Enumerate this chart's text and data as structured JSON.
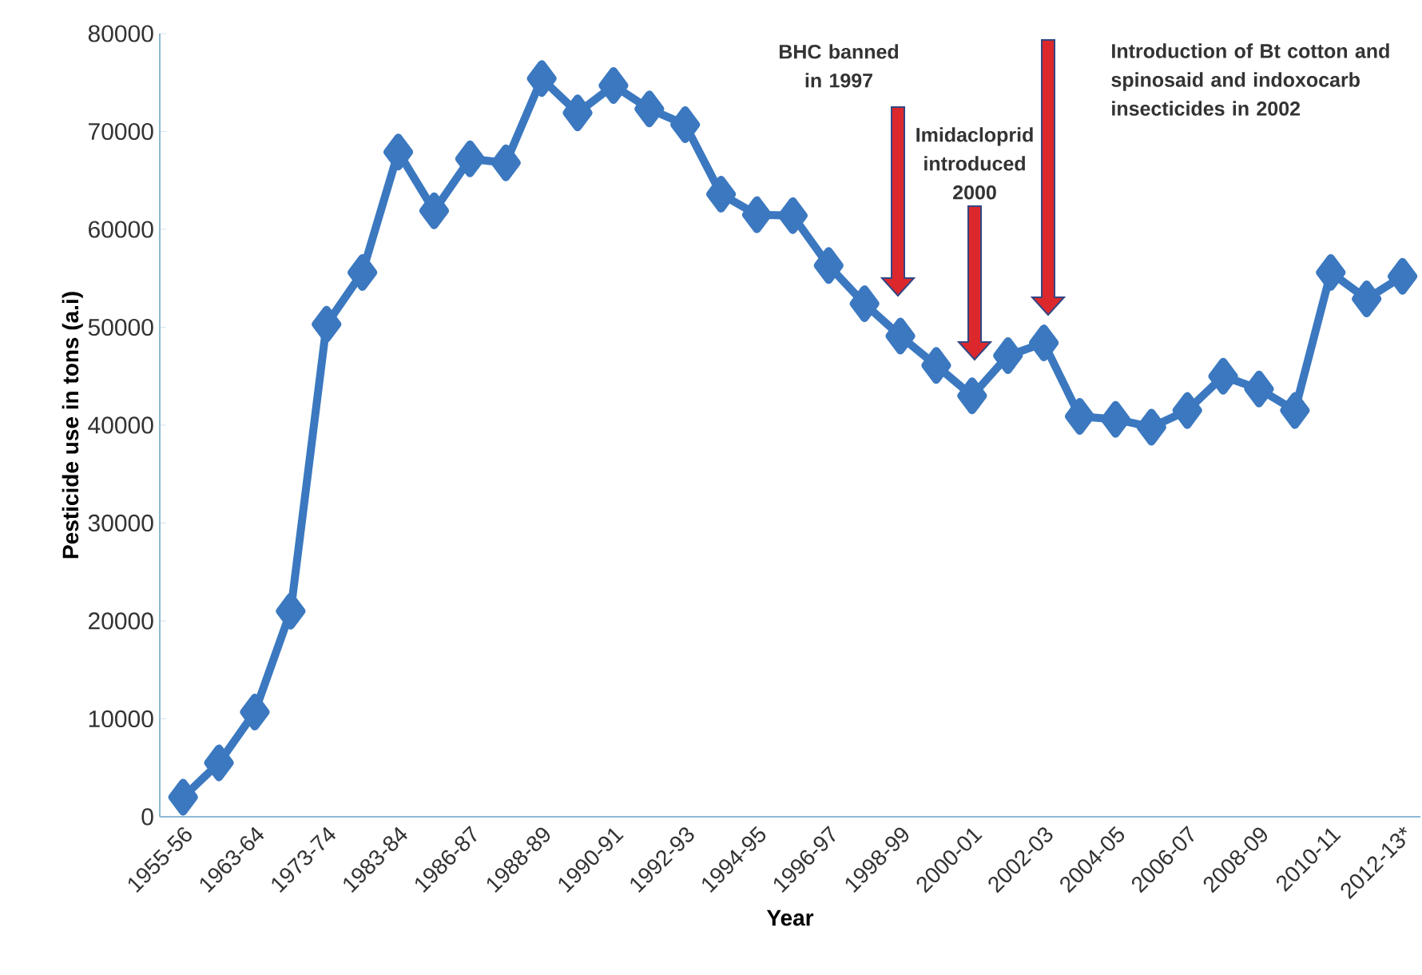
{
  "chart_data": {
    "type": "line",
    "xlabel": "Year",
    "ylabel": "Pesticide use in tons (a.i)",
    "categories": [
      "1955-56",
      null,
      "1963-64",
      null,
      "1973-74",
      null,
      "1983-84",
      null,
      "1986-87",
      null,
      "1988-89",
      null,
      "1990-91",
      null,
      "1992-93",
      null,
      "1994-95",
      null,
      "1996-97",
      null,
      "1998-99",
      null,
      "2000-01",
      null,
      "2002-03",
      null,
      "2004-05",
      null,
      "2006-07",
      null,
      "2008-09",
      null,
      "2010-11",
      null,
      "2012-13*"
    ],
    "series": [
      {
        "color": "#3b78c0",
        "values": [
          2000,
          5500,
          10700,
          21000,
          50300,
          55600,
          67900,
          61900,
          67200,
          66800,
          75400,
          71900,
          74700,
          72300,
          70700,
          63600,
          61500,
          61400,
          56300,
          52400,
          49100,
          46100,
          43000,
          47100,
          48400,
          40900,
          40600,
          39800,
          41500,
          45000,
          43700,
          41500,
          55600,
          52900,
          55200
        ]
      }
    ],
    "ylim": [
      0,
      80000
    ],
    "yticks": [
      0,
      10000,
      20000,
      30000,
      40000,
      50000,
      60000,
      70000,
      80000
    ],
    "marker": "diamond",
    "line_style": "solid",
    "grid": false,
    "annotations": [
      "BHC banned in 1997",
      "Imidacloprid introduced 2000",
      "Introduction of Bt cotton and spinosaid and indoxocarb insecticides in 2002"
    ]
  }
}
